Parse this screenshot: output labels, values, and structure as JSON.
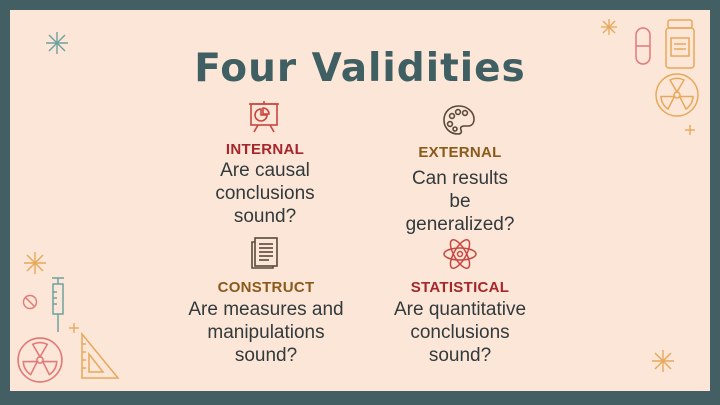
{
  "slide": {
    "title": "Four Validities"
  },
  "validities": {
    "internal": {
      "label": "INTERNAL",
      "description": "Are causal conclusions sound?",
      "color": "#a6262b",
      "icon": "presentation-chart-icon"
    },
    "external": {
      "label": "EXTERNAL",
      "description": "Can results be generalized?",
      "color": "#8a5a1c",
      "icon": "palette-icon"
    },
    "construct": {
      "label": "CONSTRUCT",
      "description": "Are measures and manipulations sound?",
      "color": "#8a5a1c",
      "icon": "document-icon"
    },
    "statistical": {
      "label": "STATISTICAL",
      "description": "Are quantitative conclusions sound?",
      "color": "#a6262b",
      "icon": "atom-icon"
    }
  },
  "colors": {
    "frame": "#445f63",
    "background": "#fbe6d8",
    "title": "#3f5f63",
    "deco_orange": "#e8a85a",
    "deco_red": "#e07a78",
    "deco_teal": "#6fa1a0"
  }
}
